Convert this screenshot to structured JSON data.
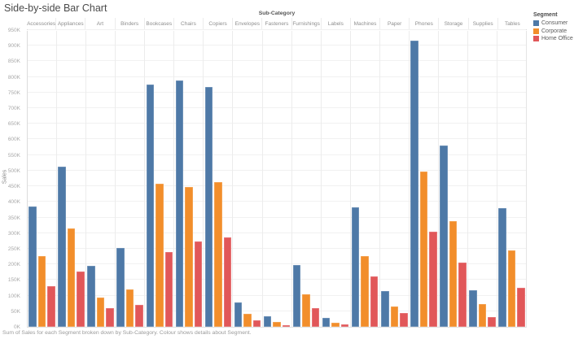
{
  "title": "Side-by-side Bar Chart",
  "caption": "Sum of Sales for each Segment broken down by Sub-Category. Colour shows details about Segment.",
  "axes": {
    "column_field_label": "Sub-Category",
    "y_axis_label": "Sales"
  },
  "legend": {
    "title": "Segment",
    "items": [
      {
        "label": "Consumer",
        "color": "#4e79a7"
      },
      {
        "label": "Corporate",
        "color": "#f28e2b"
      },
      {
        "label": "Home Office",
        "color": "#e15759"
      }
    ]
  },
  "chart_data": {
    "type": "bar",
    "title": "Side-by-side Bar Chart",
    "xlabel": "Sub-Category",
    "ylabel": "Sales",
    "units": "K (thousands of sales)",
    "ylim": [
      0,
      950
    ],
    "ytick_step": 50,
    "ytick_suffix": "K",
    "grid": true,
    "legend_position": "top-right",
    "categories": [
      "Accessories",
      "Appliances",
      "Art",
      "Binders",
      "Bookcases",
      "Chairs",
      "Copiers",
      "Envelopes",
      "Fasteners",
      "Furnishings",
      "Labels",
      "Machines",
      "Paper",
      "Phones",
      "Storage",
      "Supplies",
      "Tables"
    ],
    "series": [
      {
        "name": "Consumer",
        "color": "#4e79a7",
        "values": [
          385,
          515,
          195,
          254,
          778,
          790,
          770,
          79,
          35,
          199,
          30,
          384,
          114,
          919,
          582,
          117,
          382
        ]
      },
      {
        "name": "Corporate",
        "color": "#f28e2b",
        "values": [
          227,
          315,
          95,
          120,
          460,
          450,
          465,
          43,
          16,
          105,
          14,
          226,
          64,
          498,
          340,
          72,
          245
        ]
      },
      {
        "name": "Home Office",
        "color": "#e15759",
        "values": [
          130,
          178,
          60,
          71,
          240,
          273,
          288,
          20,
          5,
          61,
          7,
          163,
          44,
          306,
          207,
          31,
          125
        ]
      }
    ]
  }
}
